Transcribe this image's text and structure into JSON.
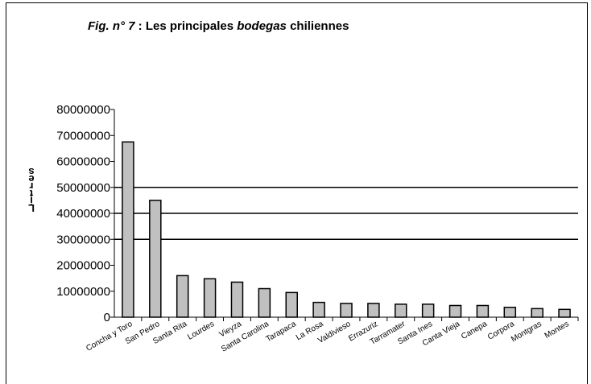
{
  "title": {
    "prefix": "Fig. n° 7",
    "sep": " : Les principales ",
    "italic": "bodegas",
    "suffix": " chiliennes"
  },
  "chart_data": {
    "type": "bar",
    "title": "Fig. n° 7 : Les principales bodegas chiliennes",
    "xlabel": "",
    "ylabel": "L i t r e s",
    "ylabel_rendered": "Litres",
    "ylim": [
      0,
      80000000
    ],
    "yticks": [
      0,
      10000000,
      20000000,
      30000000,
      40000000,
      50000000,
      60000000,
      70000000,
      80000000
    ],
    "grid": "horizontal",
    "legend": "none",
    "categories": [
      "Concha y Toro",
      "San Pedro",
      "Santa Rita",
      "Lourdes",
      "Vieyza",
      "Santa Carolina",
      "Tarapaca",
      "La Rosa",
      "Valdivieso",
      "Errazuriz",
      "Tarramater",
      "Santa Ines",
      "Canta Vieja",
      "Canepa",
      "Corpora",
      "Montgras",
      "Montes"
    ],
    "categories_display": [
      "Concha y Toro",
      "San Pedro",
      "Santa Rita",
      "Lourdes",
      "Vieyza",
      "Santa Carolina",
      "Tarapaca",
      "La Rosa",
      "Valdivieso",
      "Errazuriz",
      "Tarramater",
      "Santa Ines",
      "Canta Vieja",
      "Canepa",
      "Corpora",
      "Montgras",
      "Montes"
    ],
    "values": [
      67500000,
      45000000,
      16000000,
      14800000,
      13500000,
      11000000,
      9500000,
      5700000,
      5300000,
      5300000,
      5000000,
      5000000,
      4500000,
      4500000,
      3800000,
      3300000,
      3000000
    ],
    "colors": {
      "bar": "#c0c0c0",
      "bar_stroke": "#000000",
      "grid": "#000000"
    }
  }
}
